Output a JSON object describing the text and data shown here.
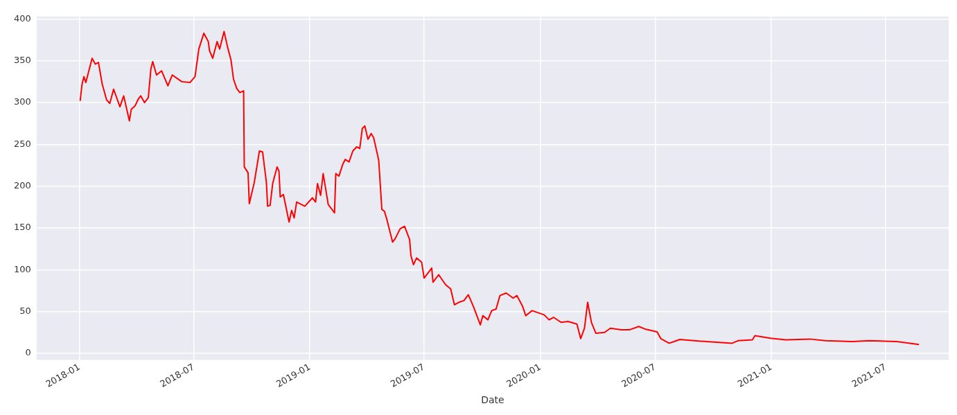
{
  "chart_data": {
    "type": "line",
    "xlabel": "Date",
    "x": [
      "2018-01-02",
      "2018-01-05",
      "2018-01-08",
      "2018-01-11",
      "2018-01-21",
      "2018-01-26",
      "2018-01-31",
      "2018-02-06",
      "2018-02-13",
      "2018-02-18",
      "2018-02-24",
      "2018-03-06",
      "2018-03-12",
      "2018-03-21",
      "2018-03-24",
      "2018-03-30",
      "2018-04-04",
      "2018-04-08",
      "2018-04-14",
      "2018-04-20",
      "2018-04-24",
      "2018-04-27",
      "2018-05-03",
      "2018-05-11",
      "2018-05-21",
      "2018-05-28",
      "2018-06-12",
      "2018-06-25",
      "2018-07-03",
      "2018-07-09",
      "2018-07-17",
      "2018-07-24",
      "2018-07-26",
      "2018-07-31",
      "2018-08-07",
      "2018-08-11",
      "2018-08-18",
      "2018-08-24",
      "2018-08-29",
      "2018-09-02",
      "2018-09-07",
      "2018-09-12",
      "2018-09-18",
      "2018-09-19",
      "2018-09-25",
      "2018-09-27",
      "2018-10-05",
      "2018-10-13",
      "2018-10-18",
      "2018-10-24",
      "2018-10-26",
      "2018-10-30",
      "2018-11-03",
      "2018-11-10",
      "2018-11-13",
      "2018-11-15",
      "2018-11-20",
      "2018-11-29",
      "2018-12-03",
      "2018-12-07",
      "2018-12-11",
      "2018-12-24",
      "2019-01-05",
      "2019-01-10",
      "2019-01-13",
      "2019-01-18",
      "2019-01-22",
      "2019-01-30",
      "2019-02-09",
      "2019-02-11",
      "2019-02-16",
      "2019-02-22",
      "2019-02-26",
      "2019-03-04",
      "2019-03-10",
      "2019-03-16",
      "2019-03-21",
      "2019-03-25",
      "2019-03-29",
      "2019-04-03",
      "2019-04-08",
      "2019-04-12",
      "2019-04-20",
      "2019-04-25",
      "2019-04-29",
      "2019-05-03",
      "2019-05-12",
      "2019-05-16",
      "2019-05-24",
      "2019-05-31",
      "2019-06-08",
      "2019-06-10",
      "2019-06-14",
      "2019-06-19",
      "2019-06-27",
      "2019-07-01",
      "2019-07-13",
      "2019-07-15",
      "2019-07-24",
      "2019-08-04",
      "2019-08-12",
      "2019-08-18",
      "2019-08-25",
      "2019-09-02",
      "2019-09-09",
      "2019-09-17",
      "2019-09-28",
      "2019-10-02",
      "2019-10-10",
      "2019-10-16",
      "2019-10-23",
      "2019-10-29",
      "2019-11-08",
      "2019-11-19",
      "2019-11-25",
      "2019-12-04",
      "2019-12-09",
      "2019-12-19",
      "2020-01-07",
      "2020-01-15",
      "2020-01-22",
      "2020-02-03",
      "2020-02-14",
      "2020-02-28",
      "2020-03-05",
      "2020-03-11",
      "2020-03-16",
      "2020-03-22",
      "2020-03-29",
      "2020-04-12",
      "2020-04-21",
      "2020-05-08",
      "2020-05-21",
      "2020-06-05",
      "2020-06-15",
      "2020-07-04",
      "2020-07-10",
      "2020-07-23",
      "2020-07-31",
      "2020-08-09",
      "2020-09-11",
      "2020-10-31",
      "2020-11-09",
      "2020-12-02",
      "2020-12-06",
      "2020-12-31",
      "2021-01-24",
      "2021-03-03",
      "2021-03-28",
      "2021-05-09",
      "2021-06-05",
      "2021-07-19",
      "2021-08-23"
    ],
    "series": [
      {
        "color": "#ff0000",
        "values": [
          302,
          322,
          331,
          324,
          353,
          346,
          348,
          322,
          303,
          299,
          316,
          295,
          308,
          278,
          292,
          296,
          304,
          308,
          300,
          306,
          340,
          349,
          333,
          338,
          320,
          333,
          325,
          324,
          331,
          364,
          383,
          373,
          362,
          353,
          373,
          364,
          385,
          365,
          351,
          328,
          317,
          312,
          314,
          223,
          216,
          179,
          205,
          242,
          241,
          205,
          176,
          177,
          203,
          223,
          218,
          187,
          190,
          157,
          171,
          162,
          181,
          176,
          186,
          181,
          203,
          189,
          215,
          178,
          168,
          215,
          212,
          226,
          232,
          229,
          242,
          247,
          245,
          269,
          272,
          256,
          263,
          258,
          231,
          172,
          170,
          160,
          133,
          137,
          149,
          152,
          136,
          117,
          106,
          114,
          109,
          90,
          102,
          85,
          94,
          82,
          77,
          58,
          61,
          63,
          70,
          56,
          34,
          45,
          40,
          51,
          53,
          69,
          72,
          66,
          69,
          56,
          45,
          51,
          46,
          40,
          43,
          37,
          38,
          35,
          17.5,
          30,
          61,
          37,
          24,
          25,
          30,
          28,
          28,
          32,
          29,
          25.6,
          17.5,
          12,
          14,
          16.5,
          14.5,
          12,
          15,
          16,
          21,
          18,
          16,
          17,
          15,
          14,
          15,
          14,
          10.5
        ]
      }
    ],
    "xlim": [
      "2017-10-25",
      "2021-10-09"
    ],
    "xticks": [
      "2018-01",
      "2018-07",
      "2019-01",
      "2019-07",
      "2020-01",
      "2020-07",
      "2021-01",
      "2021-07"
    ],
    "ylim": [
      -8,
      403
    ],
    "yticks": [
      0,
      50,
      100,
      150,
      200,
      250,
      300,
      350,
      400
    ],
    "grid": true
  }
}
